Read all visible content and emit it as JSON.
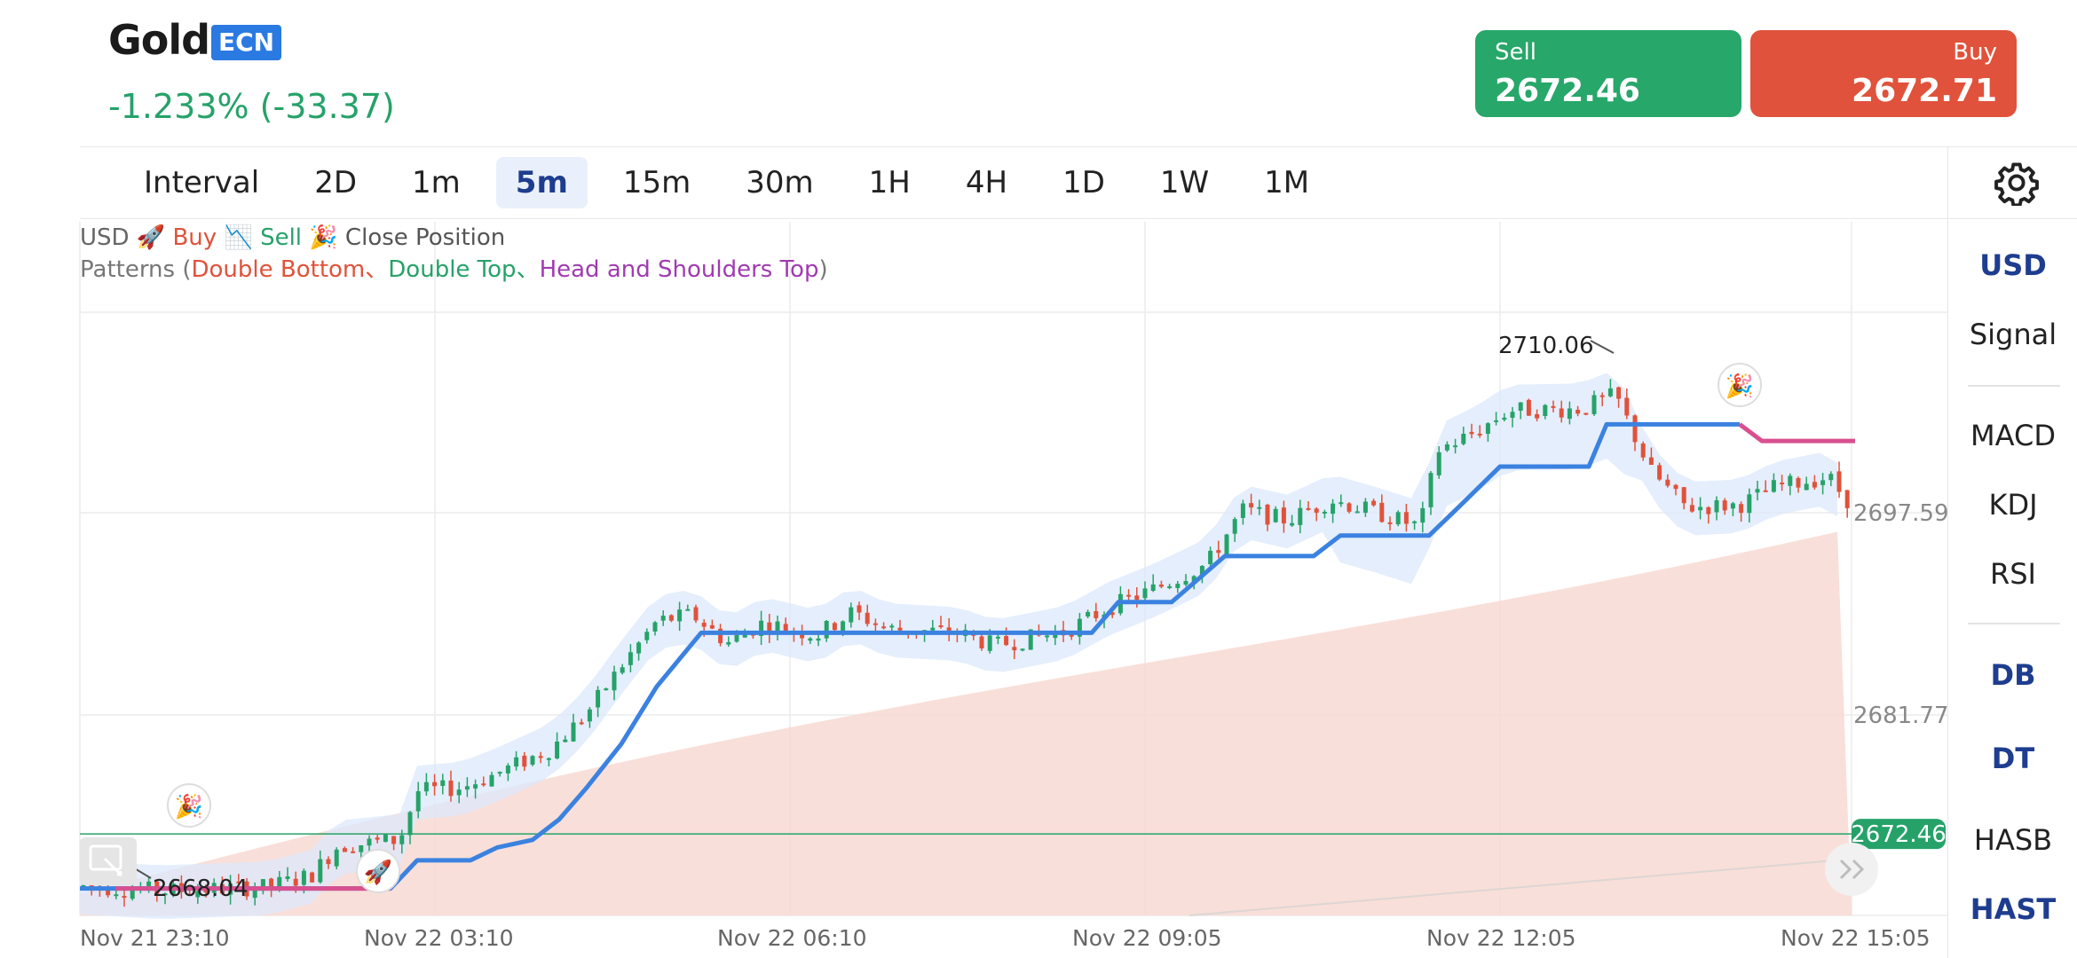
{
  "header": {
    "title": "Gold",
    "badge": "ECN",
    "change": "-1.233% (-33.37)"
  },
  "trade": {
    "sell_label": "Sell",
    "sell_price": "2672.46",
    "buy_label": "Buy",
    "buy_price": "2672.71"
  },
  "intervals": {
    "label": "Interval",
    "items": [
      "2D",
      "1m",
      "5m",
      "15m",
      "30m",
      "1H",
      "4H",
      "1D",
      "1W",
      "1M"
    ],
    "active": "5m"
  },
  "right_panel": {
    "items": [
      "USD",
      "Signal",
      "MACD",
      "KDJ",
      "RSI",
      "DB",
      "DT",
      "HASB",
      "HAST"
    ]
  },
  "legend": {
    "currency": "USD",
    "buy": "🚀 Buy",
    "sell": "📉 Sell",
    "close": "🎉 Close Position",
    "patterns_prefix": "Patterns (",
    "db": "Double Bottom",
    "sep1": "、",
    "dt": "Double Top",
    "sep2": "、",
    "hs": "Head and Shoulders Top",
    "patterns_suffix": ")"
  },
  "colors": {
    "up": "#26a269",
    "down": "#e0523b",
    "trend": "#3b82e0",
    "trend_alt": "#d8508f",
    "band": "#dbe8fb",
    "area": "#f6d5cf"
  },
  "chart_data": {
    "type": "candlestick",
    "instrument": "Gold",
    "x_ticks": [
      "Nov 21 23:10",
      "Nov 22 03:10",
      "Nov 22 06:10",
      "Nov 22 09:05",
      "Nov 22 12:05",
      "Nov 22 15:05"
    ],
    "y_ticks": [
      2697.59,
      2681.77
    ],
    "current_price": 2672.46,
    "high_annotation": 2710.06,
    "low_annotation": 2668.04,
    "ylim": [
      2665,
      2713
    ]
  }
}
